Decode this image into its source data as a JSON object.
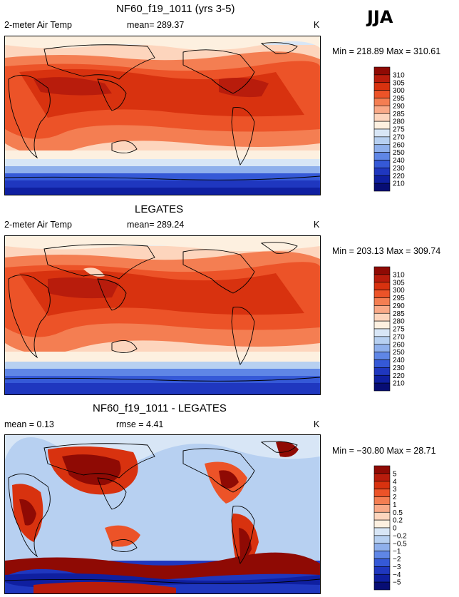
{
  "season": "JJA",
  "panels": [
    {
      "id": "model",
      "title": "NF60_f19_1011 (yrs 3-5)",
      "left_label": "2-meter Air Temp",
      "center_label": "mean= 289.37",
      "units": "K",
      "min_max": "Min = 218.89  Max = 310.61",
      "colorbar": {
        "levels": [
          "310",
          "305",
          "300",
          "295",
          "290",
          "285",
          "280",
          "275",
          "270",
          "260",
          "250",
          "240",
          "230",
          "220",
          "210"
        ],
        "colors": [
          "#8f0a04",
          "#b81c0c",
          "#d8320f",
          "#ec5328",
          "#f47e52",
          "#f9a987",
          "#fdd5bd",
          "#fdf0e0",
          "#d8e6f6",
          "#b7d0f1",
          "#8fb0ec",
          "#5f86e6",
          "#3559d7",
          "#1f37bf",
          "#0f1fa0",
          "#070d74"
        ]
      }
    },
    {
      "id": "obs",
      "title": "LEGATES",
      "left_label": "2-meter Air Temp",
      "center_label": "mean= 289.24",
      "units": "K",
      "min_max": "Min = 203.13  Max = 309.74",
      "colorbar": {
        "levels": [
          "310",
          "305",
          "300",
          "295",
          "290",
          "285",
          "280",
          "275",
          "270",
          "260",
          "250",
          "240",
          "230",
          "220",
          "210"
        ],
        "colors": [
          "#8f0a04",
          "#b81c0c",
          "#d8320f",
          "#ec5328",
          "#f47e52",
          "#f9a987",
          "#fdd5bd",
          "#fdf0e0",
          "#d8e6f6",
          "#b7d0f1",
          "#8fb0ec",
          "#5f86e6",
          "#3559d7",
          "#1f37bf",
          "#0f1fa0",
          "#070d74"
        ]
      }
    },
    {
      "id": "diff",
      "title": "NF60_f19_1011 - LEGATES",
      "left_label": "mean =    0.13",
      "center_label": "rmse =    4.41",
      "units": "K",
      "min_max": "Min = −30.80  Max =  28.71",
      "colorbar": {
        "levels": [
          "5",
          "4",
          "3",
          "2",
          "1",
          "0.5",
          "0.2",
          "0",
          "−0.2",
          "−0.5",
          "−1",
          "−2",
          "−3",
          "−4",
          "−5"
        ],
        "colors": [
          "#8f0a04",
          "#b81c0c",
          "#d8320f",
          "#ec5328",
          "#f47e52",
          "#f9a987",
          "#fdd5bd",
          "#fdf0e0",
          "#d8e6f6",
          "#b7d0f1",
          "#8fb0ec",
          "#5f86e6",
          "#3559d7",
          "#1f37bf",
          "#0f1fa0",
          "#070d74"
        ]
      }
    }
  ],
  "chart_data": [
    {
      "type": "heatmap",
      "title": "NF60_f19_1011 (yrs 3-5)",
      "variable": "2-meter Air Temp",
      "units": "K",
      "mean": 289.37,
      "min": 218.89,
      "max": 310.61,
      "contour_levels": [
        210,
        220,
        230,
        240,
        250,
        260,
        270,
        275,
        280,
        285,
        290,
        295,
        300,
        305,
        310
      ]
    },
    {
      "type": "heatmap",
      "title": "LEGATES",
      "variable": "2-meter Air Temp",
      "units": "K",
      "mean": 289.24,
      "min": 203.13,
      "max": 309.74,
      "contour_levels": [
        210,
        220,
        230,
        240,
        250,
        260,
        270,
        275,
        280,
        285,
        290,
        295,
        300,
        305,
        310
      ]
    },
    {
      "type": "heatmap",
      "title": "NF60_f19_1011 - LEGATES",
      "units": "K",
      "mean": 0.13,
      "rmse": 4.41,
      "min": -30.8,
      "max": 28.71,
      "contour_levels": [
        -5,
        -4,
        -3,
        -2,
        -1,
        -0.5,
        -0.2,
        0,
        0.2,
        0.5,
        1,
        2,
        3,
        4,
        5
      ]
    }
  ]
}
